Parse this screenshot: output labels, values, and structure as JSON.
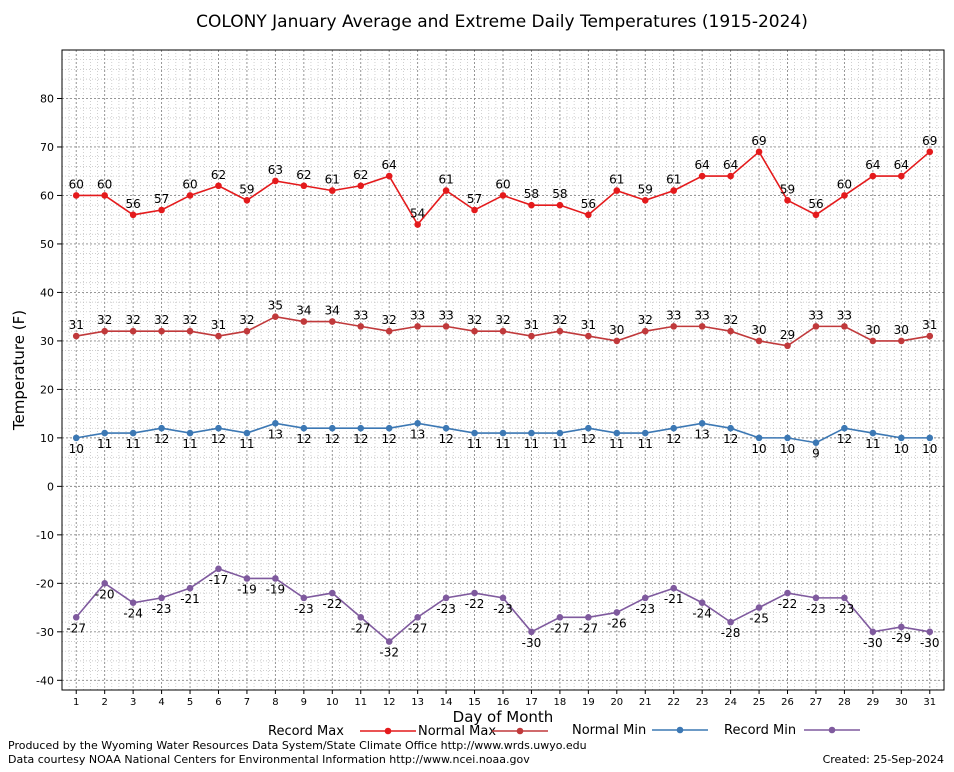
{
  "chart_data": {
    "type": "line",
    "title": "COLONY January Average and Extreme Daily Temperatures (1915-2024)",
    "xlabel": "Day of Month",
    "ylabel": "Temperature (F)",
    "ylim": [
      -42,
      90
    ],
    "y_ticks": [
      -40,
      -30,
      -20,
      -10,
      0,
      10,
      20,
      30,
      40,
      50,
      60,
      70,
      80
    ],
    "grid": true,
    "legend_position": "bottom",
    "x": [
      1,
      2,
      3,
      4,
      5,
      6,
      7,
      8,
      9,
      10,
      11,
      12,
      13,
      14,
      15,
      16,
      17,
      18,
      19,
      20,
      21,
      22,
      23,
      24,
      25,
      26,
      27,
      28,
      29,
      30,
      31
    ],
    "series": [
      {
        "name": "Record Max",
        "color": "#e41a1c",
        "label_position": "above",
        "values": [
          60,
          60,
          56,
          57,
          60,
          62,
          59,
          63,
          62,
          61,
          62,
          64,
          54,
          61,
          57,
          60,
          58,
          58,
          56,
          61,
          59,
          61,
          64,
          64,
          69,
          59,
          56,
          60,
          64,
          64,
          69
        ]
      },
      {
        "name": "Normal Max",
        "color": "#c0393b",
        "label_position": "above",
        "values": [
          31,
          32,
          32,
          32,
          32,
          31,
          32,
          35,
          34,
          34,
          33,
          32,
          33,
          33,
          32,
          32,
          31,
          32,
          31,
          30,
          32,
          33,
          33,
          32,
          30,
          29,
          33,
          33,
          30,
          30,
          31
        ]
      },
      {
        "name": "Normal Min",
        "color": "#3c78b4",
        "label_position": "below",
        "values": [
          10,
          11,
          11,
          12,
          11,
          12,
          11,
          13,
          12,
          12,
          12,
          12,
          13,
          12,
          11,
          11,
          11,
          11,
          12,
          11,
          11,
          12,
          13,
          12,
          10,
          10,
          9,
          12,
          11,
          10,
          10
        ]
      },
      {
        "name": "Record Min",
        "color": "#7f5a9e",
        "label_position": "below",
        "values": [
          -27,
          -20,
          -24,
          -23,
          -21,
          -17,
          -19,
          -19,
          -23,
          -22,
          -27,
          -32,
          -27,
          -23,
          -22,
          -23,
          -30,
          -27,
          -27,
          -26,
          -23,
          -21,
          -24,
          -28,
          -25,
          -22,
          -23,
          -23,
          -30,
          -29,
          -30
        ]
      }
    ]
  },
  "footer": {
    "produced_by": "Produced by the Wyoming Water Resources Data System/State Climate Office http://www.wrds.uwyo.edu",
    "courtesy": "Data courtesy NOAA National Centers for Environmental Information http://www.ncei.noaa.gov",
    "created": "Created: 25-Sep-2024"
  }
}
